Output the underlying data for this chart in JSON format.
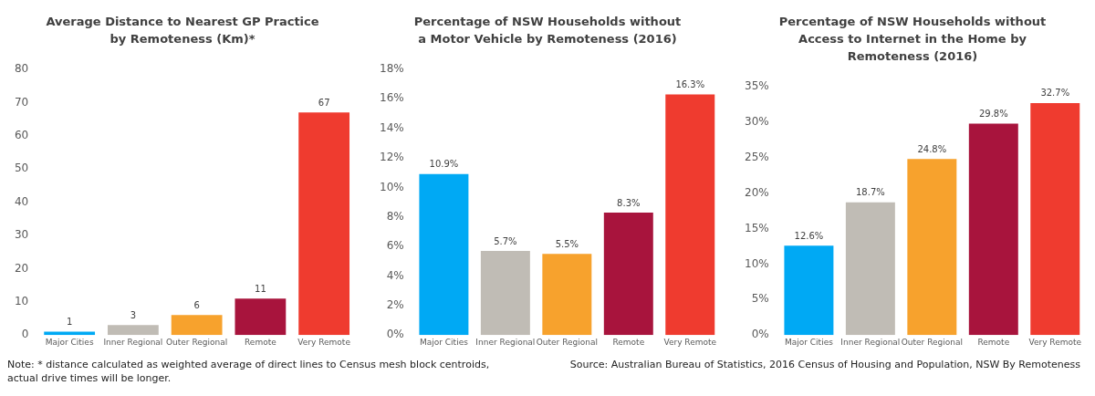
{
  "chart_data": [
    {
      "type": "bar",
      "title": "Average Distance to Nearest GP Practice by Remoteness (Km)*",
      "categories": [
        "Major Cities",
        "Inner Regional",
        "Outer Regional",
        "Remote",
        "Very Remote"
      ],
      "values": [
        1,
        3,
        6,
        11,
        67
      ],
      "colors": [
        "#00a9f4",
        "#c0bcb5",
        "#f7a22d",
        "#a8143d",
        "#ef3b2f"
      ],
      "ylim": [
        0,
        80
      ],
      "yticks": [
        0,
        10,
        20,
        30,
        40,
        50,
        60,
        70,
        80
      ],
      "data_labels": true,
      "grid": false,
      "legend": false,
      "annotations": [
        "Note: * distance calculated as weighted average of direct lines to Census mesh block centroids, actual drive times will be longer."
      ]
    },
    {
      "type": "bar",
      "title": "Percentage of NSW Households without a Motor Vehicle by Remoteness (2016)",
      "categories": [
        "Major Cities",
        "Inner Regional",
        "Outer Regional",
        "Remote",
        "Very Remote"
      ],
      "values": [
        10.9,
        5.7,
        5.5,
        8.3,
        16.3
      ],
      "value_labels": [
        "10.9%",
        "5.7%",
        "5.5%",
        "8.3%",
        "16.3%"
      ],
      "colors": [
        "#00a9f4",
        "#c0bcb5",
        "#f7a22d",
        "#a8143d",
        "#ef3b2f"
      ],
      "ylim": [
        0,
        18
      ],
      "yticks": [
        {
          "value": 0,
          "label": "0%"
        },
        {
          "value": 2,
          "label": "2%"
        },
        {
          "value": 4,
          "label": "4%"
        },
        {
          "value": 6,
          "label": "6%"
        },
        {
          "value": 8,
          "label": "8%"
        },
        {
          "value": 10,
          "label": "10%"
        },
        {
          "value": 12,
          "label": "12%"
        },
        {
          "value": 14,
          "label": "14%"
        },
        {
          "value": 16,
          "label": "16%"
        },
        {
          "value": 18,
          "label": "18%"
        }
      ],
      "grid": false,
      "legend": false
    },
    {
      "type": "bar",
      "title": "Percentage of NSW Households without Access to Internet in the Home by Remoteness (2016)",
      "categories": [
        "Major Cities",
        "Inner Regional",
        "Outer Regional",
        "Remote",
        "Very Remote"
      ],
      "values": [
        12.6,
        18.7,
        24.8,
        29.8,
        32.7
      ],
      "value_labels": [
        "12.6%",
        "18.7%",
        "24.8%",
        "29.8%",
        "32.7%"
      ],
      "colors": [
        "#00a9f4",
        "#c0bcb5",
        "#f7a22d",
        "#a8143d",
        "#ef3b2f"
      ],
      "ylim": [
        0,
        35
      ],
      "yticks": [
        {
          "value": 0,
          "label": "0%"
        },
        {
          "value": 5,
          "label": "5%"
        },
        {
          "value": 10,
          "label": "10%"
        },
        {
          "value": 15,
          "label": "15%"
        },
        {
          "value": 20,
          "label": "20%"
        },
        {
          "value": 25,
          "label": "25%"
        },
        {
          "value": 30,
          "label": "30%"
        },
        {
          "value": 35,
          "label": "35%"
        }
      ],
      "grid": false,
      "legend": false,
      "annotations": [
        "Source: Australian Bureau of Statistics, 2016 Census of Housing and Population, NSW By Remoteness"
      ]
    }
  ]
}
